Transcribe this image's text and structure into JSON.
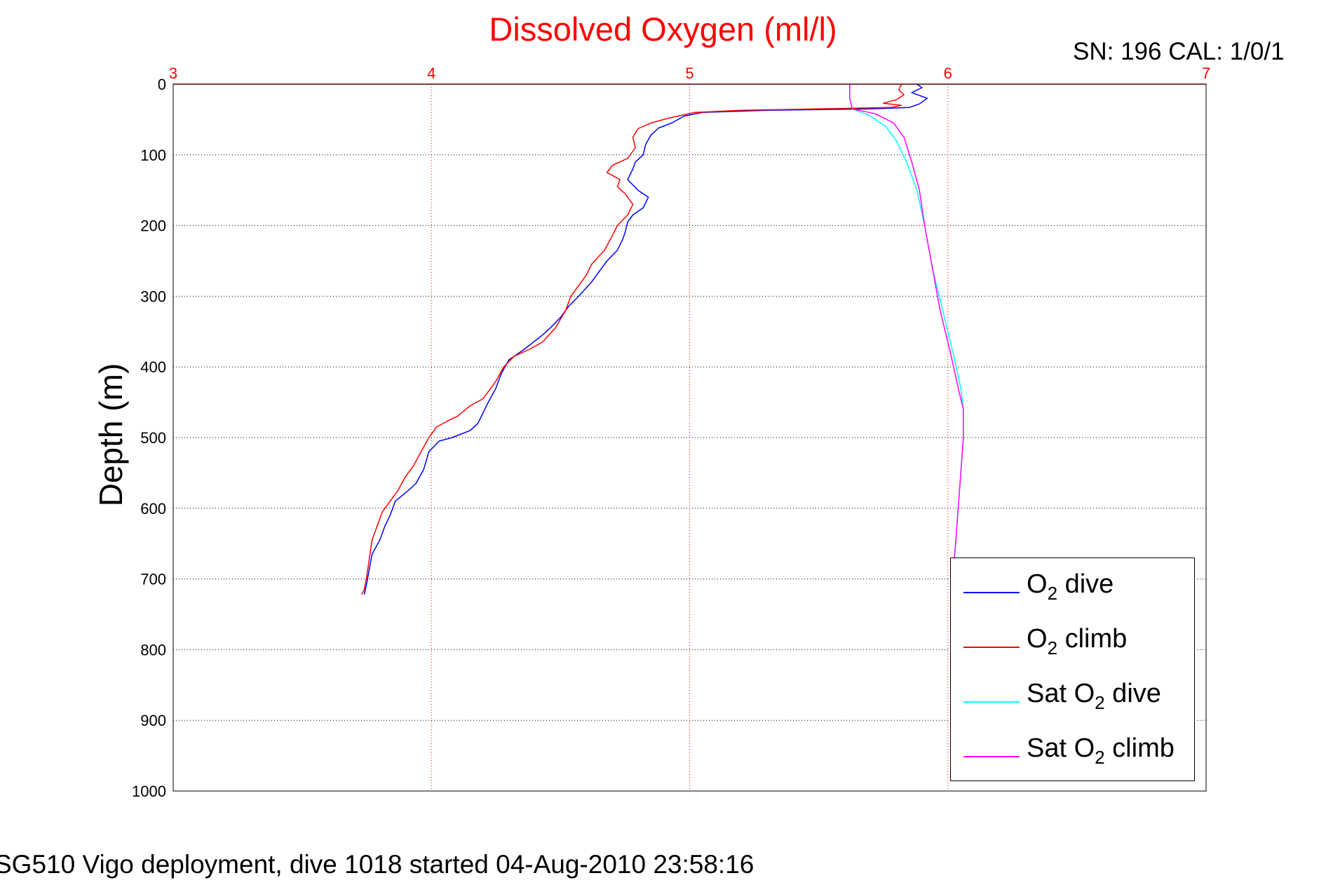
{
  "chart_data": {
    "type": "line",
    "title": "Dissolved Oxygen (ml/l)",
    "serial_text": "SN: 196  CAL: 1/0/1",
    "ylabel": "Depth (m)",
    "caption": "SG510 Vigo deployment, dive 1018 started 04-Aug-2010 23:58:16",
    "xlim": [
      3,
      7
    ],
    "ylim": [
      0,
      1000
    ],
    "y_reversed": true,
    "x_axis_position": "top",
    "xticks": [
      3,
      4,
      5,
      6,
      7
    ],
    "yticks": [
      0,
      100,
      200,
      300,
      400,
      500,
      600,
      700,
      800,
      900,
      1000
    ],
    "grid": true,
    "axis_color": "#ff0000",
    "legend_position": "bottom-right",
    "series": [
      {
        "legend": [
          "O",
          "2",
          " dive"
        ],
        "color": "#0000ff",
        "points": [
          [
            5.88,
            0
          ],
          [
            5.9,
            5
          ],
          [
            5.86,
            12
          ],
          [
            5.92,
            20
          ],
          [
            5.89,
            28
          ],
          [
            5.85,
            33
          ],
          [
            5.7,
            35
          ],
          [
            5.3,
            37
          ],
          [
            5.05,
            40
          ],
          [
            4.98,
            45
          ],
          [
            4.93,
            55
          ],
          [
            4.88,
            62
          ],
          [
            4.85,
            72
          ],
          [
            4.83,
            85
          ],
          [
            4.82,
            100
          ],
          [
            4.79,
            110
          ],
          [
            4.78,
            120
          ],
          [
            4.76,
            135
          ],
          [
            4.8,
            150
          ],
          [
            4.84,
            160
          ],
          [
            4.82,
            175
          ],
          [
            4.78,
            185
          ],
          [
            4.76,
            195
          ],
          [
            4.75,
            210
          ],
          [
            4.74,
            220
          ],
          [
            4.72,
            235
          ],
          [
            4.68,
            250
          ],
          [
            4.65,
            265
          ],
          [
            4.62,
            280
          ],
          [
            4.57,
            300
          ],
          [
            4.53,
            315
          ],
          [
            4.5,
            330
          ],
          [
            4.46,
            345
          ],
          [
            4.43,
            355
          ],
          [
            4.36,
            375
          ],
          [
            4.3,
            390
          ],
          [
            4.27,
            410
          ],
          [
            4.25,
            430
          ],
          [
            4.22,
            450
          ],
          [
            4.2,
            465
          ],
          [
            4.18,
            480
          ],
          [
            4.15,
            490
          ],
          [
            4.08,
            500
          ],
          [
            4.03,
            505
          ],
          [
            3.99,
            520
          ],
          [
            3.97,
            545
          ],
          [
            3.94,
            565
          ],
          [
            3.91,
            575
          ],
          [
            3.86,
            590
          ],
          [
            3.84,
            610
          ],
          [
            3.82,
            625
          ],
          [
            3.8,
            645
          ],
          [
            3.77,
            665
          ],
          [
            3.76,
            685
          ],
          [
            3.75,
            705
          ],
          [
            3.74,
            722
          ]
        ]
      },
      {
        "legend": [
          "O",
          "2",
          " climb"
        ],
        "color": "#ff0000",
        "points": [
          [
            5.82,
            0
          ],
          [
            5.81,
            8
          ],
          [
            5.83,
            15
          ],
          [
            5.8,
            22
          ],
          [
            5.75,
            27
          ],
          [
            5.82,
            30
          ],
          [
            5.78,
            33
          ],
          [
            5.5,
            35
          ],
          [
            5.2,
            37
          ],
          [
            5.02,
            40
          ],
          [
            4.92,
            48
          ],
          [
            4.85,
            55
          ],
          [
            4.8,
            63
          ],
          [
            4.78,
            75
          ],
          [
            4.79,
            90
          ],
          [
            4.76,
            105
          ],
          [
            4.7,
            115
          ],
          [
            4.68,
            125
          ],
          [
            4.73,
            135
          ],
          [
            4.72,
            145
          ],
          [
            4.75,
            155
          ],
          [
            4.78,
            170
          ],
          [
            4.76,
            185
          ],
          [
            4.72,
            200
          ],
          [
            4.7,
            215
          ],
          [
            4.67,
            235
          ],
          [
            4.62,
            255
          ],
          [
            4.6,
            270
          ],
          [
            4.57,
            285
          ],
          [
            4.54,
            300
          ],
          [
            4.52,
            320
          ],
          [
            4.48,
            345
          ],
          [
            4.43,
            365
          ],
          [
            4.38,
            375
          ],
          [
            4.32,
            385
          ],
          [
            4.28,
            400
          ],
          [
            4.25,
            420
          ],
          [
            4.2,
            445
          ],
          [
            4.15,
            455
          ],
          [
            4.1,
            470
          ],
          [
            4.07,
            475
          ],
          [
            4.02,
            485
          ],
          [
            3.99,
            500
          ],
          [
            3.96,
            520
          ],
          [
            3.93,
            540
          ],
          [
            3.9,
            555
          ],
          [
            3.87,
            575
          ],
          [
            3.84,
            590
          ],
          [
            3.81,
            605
          ],
          [
            3.79,
            625
          ],
          [
            3.77,
            645
          ],
          [
            3.76,
            670
          ],
          [
            3.75,
            695
          ],
          [
            3.74,
            715
          ],
          [
            3.73,
            722
          ]
        ]
      },
      {
        "legend": [
          "Sat O",
          "2",
          " dive"
        ],
        "color": "#00ffff",
        "points": [
          [
            5.62,
            0
          ],
          [
            5.62,
            20
          ],
          [
            5.63,
            35
          ],
          [
            5.7,
            45
          ],
          [
            5.76,
            60
          ],
          [
            5.8,
            80
          ],
          [
            5.84,
            110
          ],
          [
            5.88,
            150
          ],
          [
            5.91,
            200
          ],
          [
            5.94,
            260
          ],
          [
            5.98,
            320
          ],
          [
            6.02,
            380
          ],
          [
            6.05,
            430
          ],
          [
            6.06,
            460
          ],
          [
            6.06,
            500
          ],
          [
            6.05,
            550
          ],
          [
            6.04,
            600
          ],
          [
            6.03,
            650
          ],
          [
            6.02,
            690
          ],
          [
            6.01,
            722
          ]
        ]
      },
      {
        "legend": [
          "Sat O",
          "2",
          " climb"
        ],
        "color": "#ff00ff",
        "points": [
          [
            5.62,
            0
          ],
          [
            5.62,
            20
          ],
          [
            5.63,
            35
          ],
          [
            5.72,
            42
          ],
          [
            5.79,
            55
          ],
          [
            5.83,
            75
          ],
          [
            5.86,
            110
          ],
          [
            5.89,
            150
          ],
          [
            5.91,
            200
          ],
          [
            5.94,
            260
          ],
          [
            5.97,
            320
          ],
          [
            6.01,
            380
          ],
          [
            6.04,
            430
          ],
          [
            6.06,
            460
          ],
          [
            6.06,
            500
          ],
          [
            6.05,
            550
          ],
          [
            6.04,
            600
          ],
          [
            6.03,
            650
          ],
          [
            6.02,
            690
          ],
          [
            6.01,
            722
          ]
        ]
      }
    ]
  }
}
